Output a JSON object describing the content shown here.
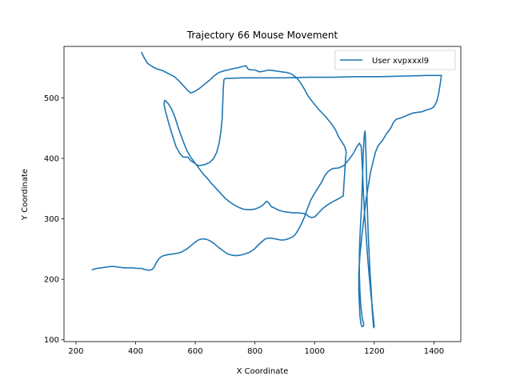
{
  "chart_data": {
    "type": "line",
    "title": "Trajectory 66 Mouse Movement",
    "xlabel": "X Coordinate",
    "ylabel": "Y Coordinate",
    "xlim": [
      160,
      1490
    ],
    "ylim": [
      97,
      585
    ],
    "xticks": [
      200,
      400,
      600,
      800,
      1000,
      1200,
      1400
    ],
    "yticks": [
      100,
      200,
      300,
      400,
      500
    ],
    "grid": false,
    "legend_position": "top-right",
    "series": [
      {
        "name": "User xvpxxxl9",
        "color": "#1f77b4",
        "points": [
          [
            420,
            575
          ],
          [
            430,
            565
          ],
          [
            440,
            557
          ],
          [
            455,
            552
          ],
          [
            470,
            548
          ],
          [
            490,
            545
          ],
          [
            510,
            540
          ],
          [
            530,
            535
          ],
          [
            545,
            528
          ],
          [
            560,
            520
          ],
          [
            575,
            512
          ],
          [
            585,
            508
          ],
          [
            600,
            511
          ],
          [
            615,
            516
          ],
          [
            630,
            522
          ],
          [
            650,
            530
          ],
          [
            665,
            537
          ],
          [
            680,
            542
          ],
          [
            700,
            545
          ],
          [
            725,
            548
          ],
          [
            745,
            550
          ],
          [
            760,
            552
          ],
          [
            770,
            553
          ],
          [
            778,
            547
          ],
          [
            790,
            546
          ],
          [
            800,
            546
          ],
          [
            815,
            543
          ],
          [
            830,
            544
          ],
          [
            845,
            546
          ],
          [
            860,
            545
          ],
          [
            875,
            544
          ],
          [
            890,
            543
          ],
          [
            905,
            542
          ],
          [
            920,
            540
          ],
          [
            935,
            535
          ],
          [
            945,
            530
          ],
          [
            955,
            523
          ],
          [
            965,
            515
          ],
          [
            978,
            503
          ],
          [
            995,
            492
          ],
          [
            1015,
            480
          ],
          [
            1035,
            470
          ],
          [
            1055,
            458
          ],
          [
            1070,
            447
          ],
          [
            1080,
            436
          ],
          [
            1090,
            428
          ],
          [
            1098,
            422
          ],
          [
            1102,
            418
          ],
          [
            1106,
            410
          ],
          [
            1104,
            400
          ],
          [
            1102,
            385
          ],
          [
            1100,
            370
          ],
          [
            1098,
            355
          ],
          [
            1097,
            345
          ],
          [
            1096,
            338
          ],
          [
            1080,
            333
          ],
          [
            1060,
            328
          ],
          [
            1040,
            322
          ],
          [
            1025,
            316
          ],
          [
            1010,
            308
          ],
          [
            1000,
            303
          ],
          [
            990,
            302
          ],
          [
            980,
            304
          ],
          [
            970,
            308
          ],
          [
            960,
            309
          ],
          [
            940,
            310
          ],
          [
            925,
            310
          ],
          [
            910,
            311
          ],
          [
            895,
            312
          ],
          [
            880,
            314
          ],
          [
            865,
            318
          ],
          [
            855,
            320
          ],
          [
            847,
            326
          ],
          [
            840,
            329
          ],
          [
            835,
            327
          ],
          [
            825,
            322
          ],
          [
            815,
            319
          ],
          [
            800,
            316
          ],
          [
            780,
            315
          ],
          [
            760,
            316
          ],
          [
            745,
            319
          ],
          [
            730,
            323
          ],
          [
            715,
            328
          ],
          [
            700,
            334
          ],
          [
            685,
            342
          ],
          [
            670,
            350
          ],
          [
            655,
            358
          ],
          [
            640,
            367
          ],
          [
            625,
            375
          ],
          [
            610,
            385
          ],
          [
            595,
            395
          ],
          [
            582,
            404
          ],
          [
            572,
            413
          ],
          [
            562,
            425
          ],
          [
            552,
            438
          ],
          [
            542,
            452
          ],
          [
            532,
            468
          ],
          [
            520,
            482
          ],
          [
            510,
            490
          ],
          [
            500,
            495
          ],
          [
            498,
            496
          ],
          [
            495,
            490
          ],
          [
            500,
            478
          ],
          [
            510,
            460
          ],
          [
            522,
            440
          ],
          [
            535,
            420
          ],
          [
            548,
            408
          ],
          [
            560,
            402
          ],
          [
            575,
            402
          ],
          [
            585,
            396
          ],
          [
            598,
            392
          ],
          [
            610,
            388
          ],
          [
            628,
            389
          ],
          [
            648,
            393
          ],
          [
            662,
            400
          ],
          [
            672,
            410
          ],
          [
            680,
            425
          ],
          [
            686,
            445
          ],
          [
            690,
            465
          ],
          [
            692,
            490
          ],
          [
            694,
            515
          ],
          [
            696,
            530
          ],
          [
            700,
            532
          ],
          [
            760,
            533
          ],
          [
            830,
            533
          ],
          [
            900,
            533
          ],
          [
            980,
            534
          ],
          [
            1060,
            534
          ],
          [
            1140,
            535
          ],
          [
            1220,
            535
          ],
          [
            1300,
            536
          ],
          [
            1375,
            537
          ],
          [
            1425,
            537
          ],
          [
            1420,
            520
          ],
          [
            1415,
            505
          ],
          [
            1410,
            495
          ],
          [
            1405,
            490
          ],
          [
            1400,
            485
          ],
          [
            1390,
            482
          ],
          [
            1375,
            480
          ],
          [
            1360,
            477
          ],
          [
            1345,
            476
          ],
          [
            1330,
            475
          ],
          [
            1315,
            472
          ],
          [
            1300,
            469
          ],
          [
            1285,
            466
          ],
          [
            1275,
            465
          ],
          [
            1265,
            460
          ],
          [
            1255,
            450
          ],
          [
            1240,
            440
          ],
          [
            1228,
            430
          ],
          [
            1220,
            425
          ],
          [
            1212,
            420
          ],
          [
            1204,
            410
          ],
          [
            1196,
            395
          ],
          [
            1188,
            378
          ],
          [
            1180,
            355
          ],
          [
            1172,
            330
          ],
          [
            1165,
            300
          ],
          [
            1158,
            270
          ],
          [
            1152,
            240
          ],
          [
            1148,
            210
          ],
          [
            1148,
            180
          ],
          [
            1150,
            160
          ],
          [
            1152,
            140
          ],
          [
            1155,
            127
          ],
          [
            1158,
            122
          ],
          [
            1162,
            122
          ],
          [
            1165,
            125
          ],
          [
            1160,
            135
          ],
          [
            1155,
            155
          ],
          [
            1152,
            180
          ],
          [
            1150,
            210
          ],
          [
            1150,
            240
          ],
          [
            1152,
            270
          ],
          [
            1155,
            300
          ],
          [
            1158,
            330
          ],
          [
            1160,
            360
          ],
          [
            1162,
            390
          ],
          [
            1163,
            410
          ],
          [
            1165,
            425
          ],
          [
            1167,
            440
          ],
          [
            1169,
            445
          ],
          [
            1171,
            430
          ],
          [
            1172,
            410
          ],
          [
            1173,
            390
          ],
          [
            1174,
            370
          ],
          [
            1175,
            350
          ],
          [
            1176,
            330
          ],
          [
            1178,
            300
          ],
          [
            1180,
            270
          ],
          [
            1183,
            240
          ],
          [
            1186,
            210
          ],
          [
            1190,
            180
          ],
          [
            1193,
            150
          ],
          [
            1196,
            130
          ],
          [
            1198,
            120
          ],
          [
            1200,
            122
          ],
          [
            1196,
            140
          ],
          [
            1190,
            170
          ],
          [
            1184,
            200
          ],
          [
            1178,
            235
          ],
          [
            1173,
            270
          ],
          [
            1168,
            305
          ],
          [
            1164,
            340
          ],
          [
            1161,
            375
          ],
          [
            1158,
            405
          ],
          [
            1156,
            420
          ],
          [
            1150,
            425
          ],
          [
            1140,
            418
          ],
          [
            1130,
            408
          ],
          [
            1115,
            398
          ],
          [
            1098,
            388
          ],
          [
            1080,
            384
          ],
          [
            1060,
            383
          ],
          [
            1045,
            378
          ],
          [
            1035,
            372
          ],
          [
            1025,
            362
          ],
          [
            1015,
            354
          ],
          [
            1005,
            346
          ],
          [
            995,
            338
          ],
          [
            987,
            331
          ],
          [
            980,
            322
          ],
          [
            973,
            313
          ],
          [
            966,
            303
          ],
          [
            958,
            294
          ],
          [
            950,
            286
          ],
          [
            942,
            279
          ],
          [
            935,
            274
          ],
          [
            926,
            270
          ],
          [
            917,
            268
          ],
          [
            906,
            266
          ],
          [
            896,
            265
          ],
          [
            886,
            265
          ],
          [
            876,
            266
          ],
          [
            866,
            267
          ],
          [
            856,
            268
          ],
          [
            846,
            268
          ],
          [
            835,
            267
          ],
          [
            825,
            263
          ],
          [
            812,
            257
          ],
          [
            798,
            250
          ],
          [
            783,
            245
          ],
          [
            768,
            242
          ],
          [
            752,
            240
          ],
          [
            736,
            239
          ],
          [
            722,
            240
          ],
          [
            708,
            242
          ],
          [
            694,
            247
          ],
          [
            680,
            252
          ],
          [
            666,
            258
          ],
          [
            652,
            263
          ],
          [
            638,
            266
          ],
          [
            624,
            267
          ],
          [
            610,
            265
          ],
          [
            596,
            260
          ],
          [
            582,
            254
          ],
          [
            568,
            249
          ],
          [
            554,
            245
          ],
          [
            540,
            243
          ],
          [
            526,
            242
          ],
          [
            512,
            241
          ],
          [
            500,
            240
          ],
          [
            488,
            238
          ],
          [
            478,
            234
          ],
          [
            470,
            228
          ],
          [
            462,
            220
          ],
          [
            455,
            216
          ],
          [
            445,
            215
          ],
          [
            432,
            216
          ],
          [
            420,
            218
          ],
          [
            405,
            218
          ],
          [
            390,
            219
          ],
          [
            375,
            219
          ],
          [
            360,
            219
          ],
          [
            345,
            220
          ],
          [
            330,
            221
          ],
          [
            315,
            221
          ],
          [
            300,
            220
          ],
          [
            285,
            219
          ],
          [
            270,
            218
          ],
          [
            255,
            216
          ]
        ]
      }
    ]
  }
}
